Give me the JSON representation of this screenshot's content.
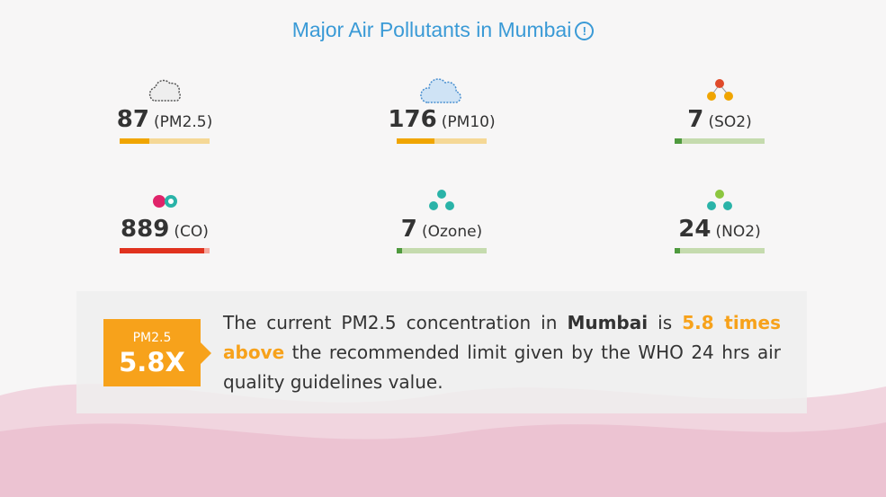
{
  "title": "Major Air Pollutants in Mumbai",
  "pollutants": [
    {
      "value": 87,
      "label": "(PM2.5)",
      "fill_percent": 33,
      "color": "#f0a500",
      "track": "#f5d896"
    },
    {
      "value": 176,
      "label": "(PM10)",
      "fill_percent": 42,
      "color": "#f0a500",
      "track": "#f5d896"
    },
    {
      "value": 7,
      "label": "(SO2)",
      "fill_percent": 8,
      "color": "#4f9a3e",
      "track": "#c5dbae"
    },
    {
      "value": 889,
      "label": "(CO)",
      "fill_percent": 94,
      "color": "#e0321e",
      "track": "#f5a89e"
    },
    {
      "value": 7,
      "label": "(Ozone)",
      "fill_percent": 6,
      "color": "#4f9a3e",
      "track": "#c5dbae"
    },
    {
      "value": 24,
      "label": "(NO2)",
      "fill_percent": 6,
      "color": "#4f9a3e",
      "track": "#c5dbae"
    }
  ],
  "callout": {
    "badge_label": "PM2.5",
    "badge_value": "5.8X",
    "text": [
      "The current PM2.5 concentration in ",
      "Mumbai",
      " is ",
      "5.8 times above",
      " the recommended limit given by the WHO 24 hrs air quality guidelines value."
    ]
  }
}
